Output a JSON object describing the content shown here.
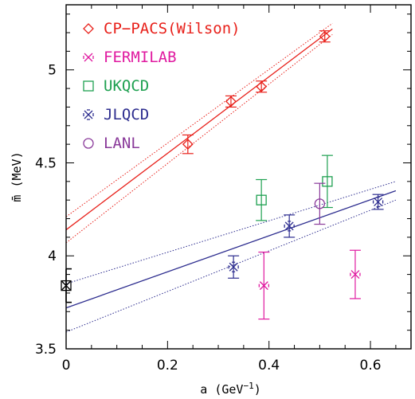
{
  "chart_data": {
    "type": "scatter",
    "xlabel": "a (GeV",
    "xlabel_sup": "−1",
    "xlabel_close": ")",
    "ylabel": "m̄ (MeV)",
    "xlim": [
      0,
      0.68
    ],
    "ylim": [
      3.5,
      5.35
    ],
    "xticks": [
      {
        "v": 0,
        "label": "0"
      },
      {
        "v": 0.2,
        "label": "0.2"
      },
      {
        "v": 0.4,
        "label": "0.4"
      },
      {
        "v": 0.6,
        "label": "0.6"
      }
    ],
    "yticks": [
      {
        "v": 3.5,
        "label": "3.5"
      },
      {
        "v": 4,
        "label": "4"
      },
      {
        "v": 4.5,
        "label": "4.5"
      },
      {
        "v": 5,
        "label": "5"
      }
    ],
    "legend_position": "top-left",
    "series": [
      {
        "name": "CP−PACS(Wilson)",
        "marker": "diamond",
        "color": "#e8211b",
        "points": [
          {
            "x": 0.24,
            "y": 4.6,
            "yerr": 0.05
          },
          {
            "x": 0.325,
            "y": 4.83,
            "yerr": 0.03
          },
          {
            "x": 0.385,
            "y": 4.91,
            "yerr": 0.03
          },
          {
            "x": 0.51,
            "y": 5.18,
            "yerr": 0.03
          }
        ]
      },
      {
        "name": "FERMILAB",
        "marker": "cross",
        "color": "#e01aa0",
        "points": [
          {
            "x": 0.39,
            "y": 3.84,
            "yerr": 0.18
          },
          {
            "x": 0.57,
            "y": 3.9,
            "yerr": 0.13
          }
        ]
      },
      {
        "name": "UKQCD",
        "marker": "square",
        "color": "#1ea050",
        "points": [
          {
            "x": 0.385,
            "y": 4.3,
            "yerr": 0.11
          },
          {
            "x": 0.515,
            "y": 4.4,
            "yerr": 0.14
          }
        ]
      },
      {
        "name": "JLQCD",
        "marker": "star",
        "color": "#2d2d8f",
        "points": [
          {
            "x": 0.33,
            "y": 3.94,
            "yerr": 0.06
          },
          {
            "x": 0.44,
            "y": 4.16,
            "yerr": 0.06
          },
          {
            "x": 0.615,
            "y": 4.29,
            "yerr": 0.04
          }
        ]
      },
      {
        "name": "LANL",
        "marker": "circle",
        "color": "#8a3a9a",
        "points": [
          {
            "x": 0.5,
            "y": 4.28,
            "yerr": 0.11
          }
        ]
      }
    ],
    "fits": [
      {
        "color": "#e8211b",
        "center": [
          [
            0,
            4.14
          ],
          [
            0.525,
            5.22
          ]
        ],
        "band_upper": [
          [
            0,
            4.21
          ],
          [
            0.525,
            5.25
          ]
        ],
        "band_lower": [
          [
            0,
            4.07
          ],
          [
            0.525,
            5.19
          ]
        ]
      },
      {
        "color": "#2d2d8f",
        "center": [
          [
            0,
            3.72
          ],
          [
            0.65,
            4.35
          ]
        ],
        "band_upper": [
          [
            0,
            3.85
          ],
          [
            0.65,
            4.4
          ]
        ],
        "band_lower": [
          [
            0,
            3.59
          ],
          [
            0.65,
            4.3
          ]
        ]
      }
    ],
    "extrapolations": [
      {
        "x": 0,
        "y": 3.84,
        "yerr": 0.09,
        "marker": "boxcross",
        "color": "#000000"
      }
    ]
  }
}
